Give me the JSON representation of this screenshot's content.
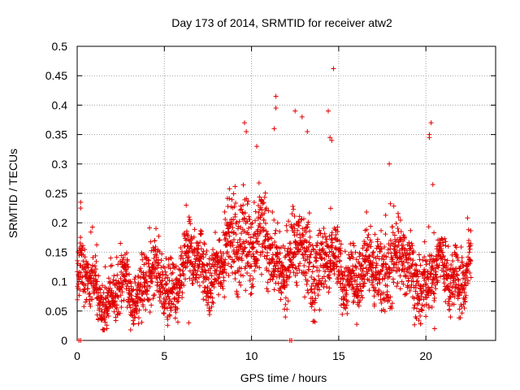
{
  "chart_data": {
    "type": "scatter",
    "title": "Day 173 of 2014, SRMTID for receiver atw2",
    "xlabel": "GPS time / hours",
    "ylabel": "SRMTID / TECUs",
    "xlim": [
      0,
      24
    ],
    "ylim": [
      0,
      0.5
    ],
    "xticks": [
      0,
      5,
      10,
      15,
      20
    ],
    "xtick_labels": [
      "0",
      "5",
      "10",
      "15",
      "20"
    ],
    "yticks": [
      0,
      0.05,
      0.1,
      0.15,
      0.2,
      0.25,
      0.3,
      0.35,
      0.4,
      0.45,
      0.5
    ],
    "ytick_labels": [
      "0",
      "0.05",
      "0.1",
      "0.15",
      "0.2",
      "0.25",
      "0.3",
      "0.35",
      "0.4",
      "0.45",
      "0.5"
    ],
    "grid": true,
    "marker": "+",
    "series_color": "#e00000",
    "envelope_hours": [
      0,
      1,
      2,
      3,
      4,
      5,
      6,
      7,
      8,
      9,
      9.5,
      10,
      11,
      12,
      13,
      14,
      15,
      16,
      17,
      18,
      19,
      20,
      21,
      22,
      22.6
    ],
    "envelope_center": [
      0.1,
      0.09,
      0.07,
      0.08,
      0.11,
      0.08,
      0.12,
      0.13,
      0.12,
      0.16,
      0.19,
      0.17,
      0.15,
      0.13,
      0.15,
      0.14,
      0.11,
      0.12,
      0.11,
      0.15,
      0.11,
      0.11,
      0.11,
      0.12,
      0.11
    ],
    "envelope_spread": [
      0.04,
      0.035,
      0.03,
      0.035,
      0.04,
      0.04,
      0.045,
      0.04,
      0.04,
      0.055,
      0.07,
      0.06,
      0.05,
      0.045,
      0.06,
      0.055,
      0.04,
      0.04,
      0.045,
      0.055,
      0.045,
      0.045,
      0.04,
      0.045,
      0.04
    ],
    "points_count": 2600,
    "outliers": [
      {
        "x": 9.6,
        "y": 0.37
      },
      {
        "x": 9.7,
        "y": 0.355
      },
      {
        "x": 10.3,
        "y": 0.33
      },
      {
        "x": 11.4,
        "y": 0.415
      },
      {
        "x": 11.4,
        "y": 0.395
      },
      {
        "x": 11.3,
        "y": 0.36
      },
      {
        "x": 12.5,
        "y": 0.39
      },
      {
        "x": 12.9,
        "y": 0.38
      },
      {
        "x": 13.2,
        "y": 0.355
      },
      {
        "x": 14.4,
        "y": 0.39
      },
      {
        "x": 14.7,
        "y": 0.462
      },
      {
        "x": 14.6,
        "y": 0.34
      },
      {
        "x": 14.5,
        "y": 0.345
      },
      {
        "x": 20.3,
        "y": 0.37
      },
      {
        "x": 20.2,
        "y": 0.35
      },
      {
        "x": 20.2,
        "y": 0.345
      },
      {
        "x": 20.4,
        "y": 0.265
      },
      {
        "x": 20.5,
        "y": 0.02
      },
      {
        "x": 0.2,
        "y": 0.235
      },
      {
        "x": 0.2,
        "y": 0.225
      },
      {
        "x": 17.9,
        "y": 0.3
      },
      {
        "x": 6.4,
        "y": 0.03
      },
      {
        "x": 1.7,
        "y": 0.02
      }
    ],
    "zero_points": [
      {
        "x": 0.1,
        "y": 0
      },
      {
        "x": 0.2,
        "y": 0
      },
      {
        "x": 12.2,
        "y": 0
      },
      {
        "x": 12.3,
        "y": 0
      }
    ]
  }
}
